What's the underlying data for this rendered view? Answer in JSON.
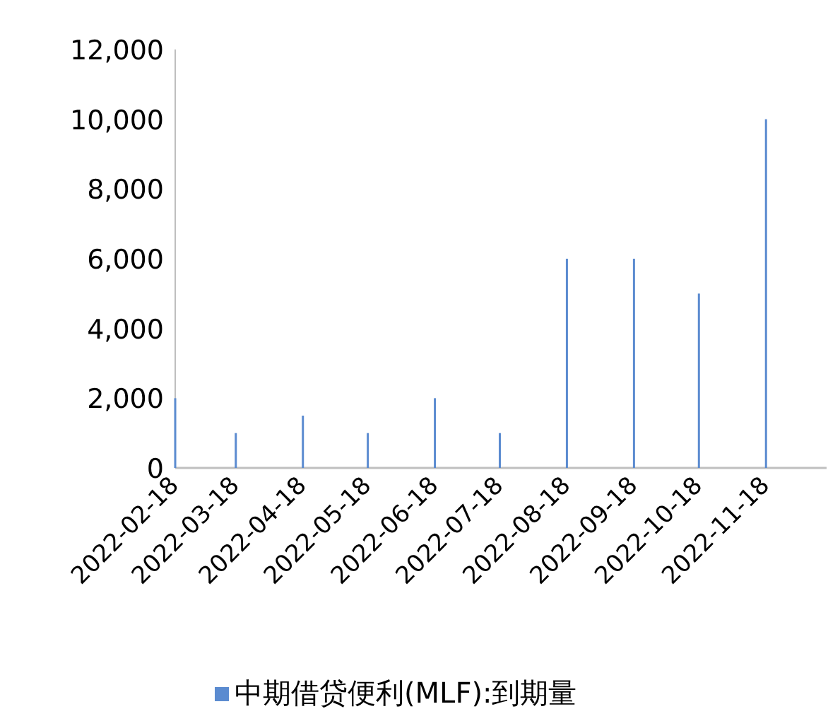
{
  "chart_data": {
    "type": "bar",
    "x": [
      "2022-02-18",
      "2022-03-18",
      "2022-04-18",
      "2022-05-18",
      "2022-06-18",
      "2022-07-18",
      "2022-08-18",
      "2022-09-18",
      "2022-10-18",
      "2022-11-18"
    ],
    "series": [
      {
        "name": "中期借贷便利(MLF):到期量",
        "color": "#5b8bd0",
        "values": [
          2000,
          1000,
          1500,
          1000,
          2000,
          1000,
          6000,
          6000,
          5000,
          10000
        ]
      }
    ],
    "xlim": [
      "2022-02-18",
      "2022-12-16"
    ],
    "xticks": [
      {
        "value": "2022-02-18",
        "label": "2022-02-18"
      },
      {
        "value": "2022-03-18",
        "label": "2022-03-18"
      },
      {
        "value": "2022-04-18",
        "label": "2022-04-18"
      },
      {
        "value": "2022-05-18",
        "label": "2022-05-18"
      },
      {
        "value": "2022-06-18",
        "label": "2022-06-18"
      },
      {
        "value": "2022-07-18",
        "label": "2022-07-18"
      },
      {
        "value": "2022-08-18",
        "label": "2022-08-18"
      },
      {
        "value": "2022-09-18",
        "label": "2022-09-18"
      },
      {
        "value": "2022-10-18",
        "label": "2022-10-18"
      },
      {
        "value": "2022-11-18",
        "label": "2022-11-18"
      }
    ],
    "ylim": [
      0,
      12000
    ],
    "yticks": [
      {
        "value": 0,
        "label": "0"
      },
      {
        "value": 2000,
        "label": "2,000"
      },
      {
        "value": 4000,
        "label": "4,000"
      },
      {
        "value": 6000,
        "label": "6,000"
      },
      {
        "value": 8000,
        "label": "8,000"
      },
      {
        "value": 10000,
        "label": "10,000"
      },
      {
        "value": 12000,
        "label": "12,000"
      }
    ],
    "grid": false,
    "legend": "bottom"
  }
}
